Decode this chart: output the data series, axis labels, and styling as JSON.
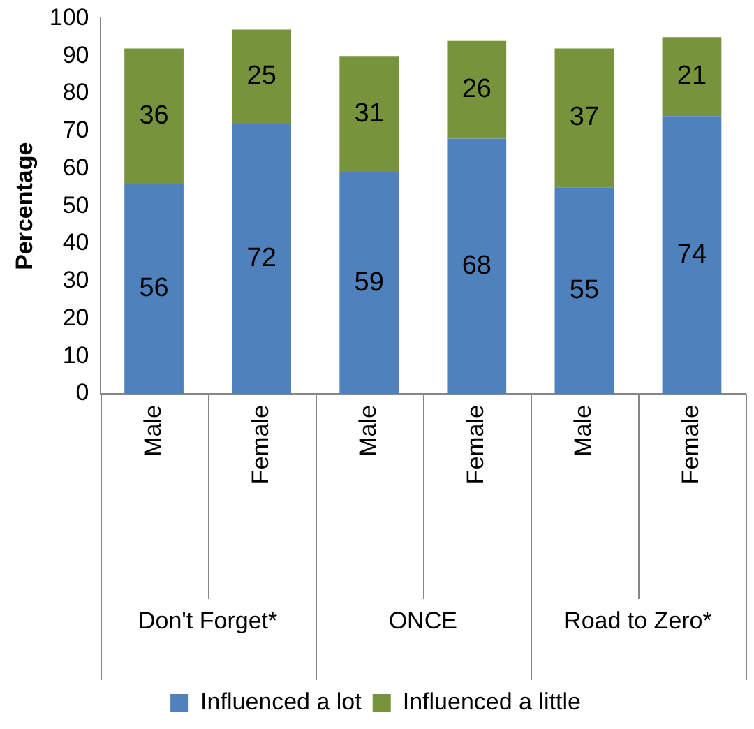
{
  "chart_data": {
    "type": "bar",
    "stacked": true,
    "ylabel": "Percentage",
    "categories": [
      "Male",
      "Female",
      "Male",
      "Female",
      "Male",
      "Female"
    ],
    "annotations": [
      "Don't Forget*",
      "ONCE",
      "Road to Zero*"
    ],
    "series": [
      {
        "name": "Influenced a lot",
        "color": "#4f81bd",
        "values": [
          56,
          72,
          59,
          68,
          55,
          74
        ]
      },
      {
        "name": "Influenced a little",
        "color": "#77933c",
        "values": [
          36,
          25,
          31,
          26,
          37,
          21
        ]
      }
    ],
    "ylim": [
      0,
      100
    ],
    "yticks": [
      0,
      10,
      20,
      30,
      40,
      50,
      60,
      70,
      80,
      90,
      100
    ],
    "grid": false,
    "legend": "bottom",
    "data_labels": true
  }
}
